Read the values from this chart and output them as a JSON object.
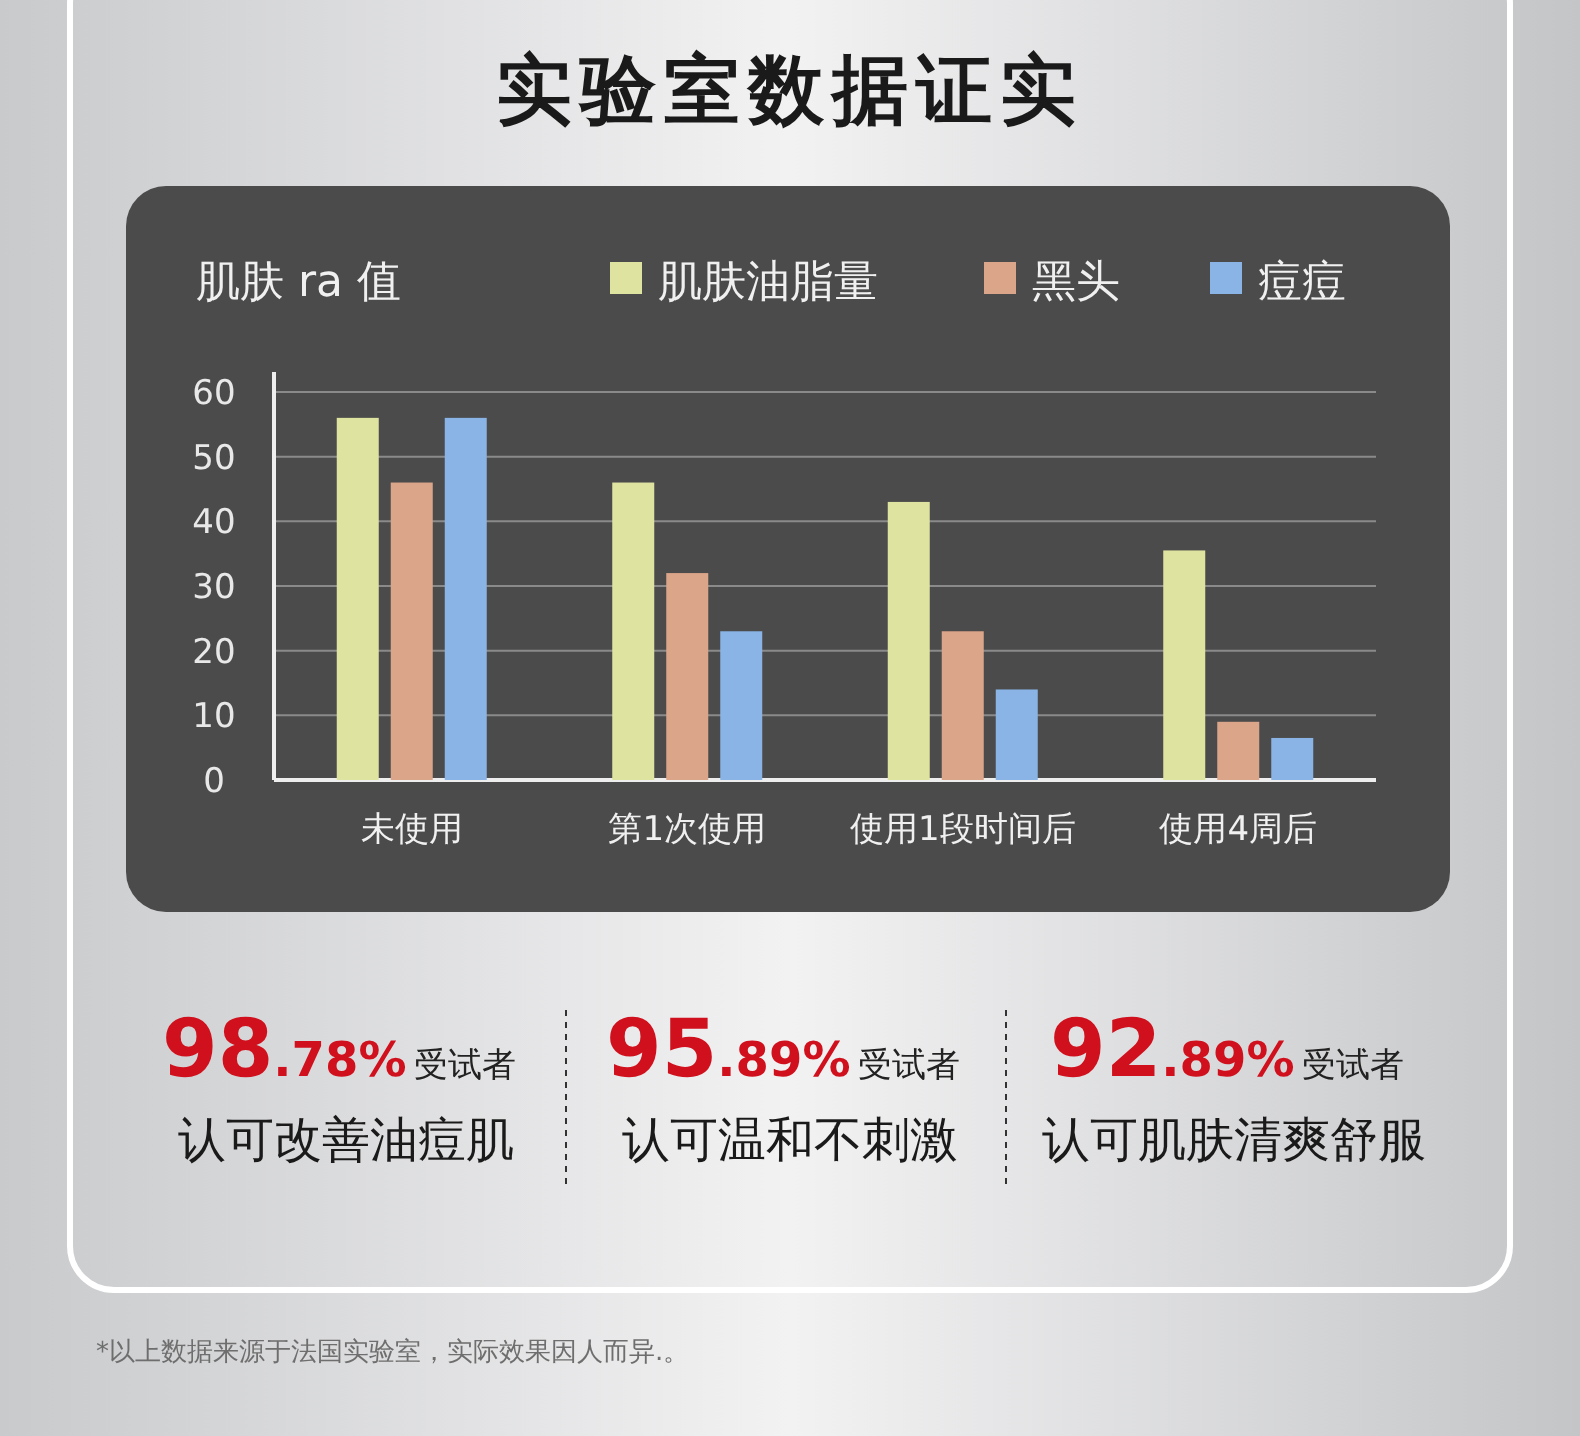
{
  "chart_data": {
    "type": "bar",
    "title": "实验室数据证实",
    "ylabel": "肌肤 ra 值",
    "categories": [
      "未使用",
      "第1次使用",
      "使用1段时间后",
      "使用4周后"
    ],
    "series": [
      {
        "name": "肌肤油脂量",
        "color": "#dfe3a0",
        "values": [
          56,
          46,
          43,
          35.5
        ]
      },
      {
        "name": "黑头",
        "color": "#dba58a",
        "values": [
          46,
          32,
          23,
          9
        ]
      },
      {
        "name": "痘痘",
        "color": "#8ab4e6",
        "values": [
          56,
          23,
          14,
          6.5
        ]
      }
    ],
    "ylim": [
      0,
      60
    ],
    "yticks": [
      0,
      10,
      20,
      30,
      40,
      50,
      60
    ],
    "grid": "y",
    "legend": "top right",
    "annotations": [
      "98.78%",
      "受试者",
      "认可改善油痘肌",
      "95.89%",
      "受试者",
      "认可温和不刺激",
      "92.89%",
      "受试者",
      "认可肌肤清爽舒服",
      "*以上数据来源于法国实验室，实际效果因人而异.。"
    ]
  }
}
